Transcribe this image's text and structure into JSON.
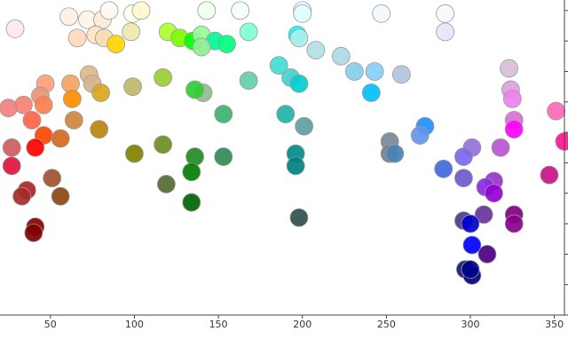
{
  "chart_data": {
    "type": "scatter",
    "x": [
      29,
      61,
      72,
      81,
      85,
      99,
      104,
      66,
      77,
      82,
      98,
      89,
      120,
      127,
      135,
      140,
      148,
      155,
      140,
      143,
      163,
      168,
      200,
      200,
      197,
      198,
      208,
      223,
      247,
      231,
      243,
      259,
      241,
      285,
      285,
      323,
      324,
      325,
      326,
      326,
      351,
      356,
      347,
      186,
      193,
      198,
      168,
      141,
      136,
      117,
      99,
      73,
      75,
      80,
      62,
      47,
      44,
      34,
      25,
      63,
      46,
      39,
      64,
      79,
      46,
      56,
      41,
      27,
      27,
      153,
      190,
      201,
      273,
      270,
      252,
      252,
      255,
      301,
      296,
      318,
      284,
      296,
      314,
      309,
      314,
      100,
      117,
      136,
      153,
      196,
      196,
      134,
      119,
      134,
      51,
      36,
      33,
      56,
      198,
      296,
      308,
      326,
      326,
      300,
      41,
      40,
      301,
      297,
      310,
      301,
      300
    ],
    "y": [
      94,
      98,
      97,
      97,
      100,
      99,
      100,
      91,
      92,
      91,
      93,
      89,
      93,
      91,
      90,
      92,
      90,
      89,
      88,
      100,
      100,
      93,
      100,
      99,
      92,
      91,
      87,
      85,
      99,
      80,
      80,
      79,
      73,
      99,
      93,
      81,
      74,
      71,
      64,
      61,
      67,
      57,
      46,
      82,
      78,
      76,
      77,
      73,
      74,
      78,
      75,
      79,
      76,
      73,
      76,
      76,
      72,
      69,
      68,
      71,
      69,
      64,
      64,
      61,
      59,
      58,
      55,
      55,
      49,
      66,
      66,
      62,
      62,
      59,
      57,
      53,
      53,
      55,
      52,
      55,
      48,
      45,
      44,
      42,
      40,
      53,
      56,
      52,
      52,
      53,
      49,
      47,
      43,
      37,
      45,
      41,
      39,
      39,
      32,
      31,
      33,
      33,
      30,
      30,
      29,
      27,
      23,
      15,
      20,
      13,
      15
    ],
    "colors": [
      "#fde8e8",
      "#fff0e8",
      "#fdf5e6",
      "#faebd7",
      "#fffaf0",
      "#fffff0",
      "#fffacd",
      "#ffdab9",
      "#ffe4c4",
      "#f5deb3",
      "#eee8aa",
      "#ffd700",
      "#adff2f",
      "#7cfc00",
      "#00ff00",
      "#98fb98",
      "#00fa9a",
      "#00ff7f",
      "#90ee90",
      "#f0fff0",
      "#f5fffa",
      "#7fffd4",
      "#f0ffff",
      "#e0ffff",
      "#00ffff",
      "#afeeee",
      "#b0e0e6",
      "#add8e6",
      "#f0f8ff",
      "#87ceeb",
      "#87cefa",
      "#b0c4de",
      "#00bfff",
      "#f8f8ff",
      "#e6e6fa",
      "#d8bfd8",
      "#dda0dd",
      "#ee82ee",
      "#da70d6",
      "#ff00ff",
      "#ff69b4",
      "#ff1493",
      "#c71585",
      "#40e0d0",
      "#48d1cc",
      "#00ced1",
      "#66cdaa",
      "#8fbc8f",
      "#32cd32",
      "#9acd32",
      "#bdb76b",
      "#deb887",
      "#d2b48c",
      "#daa520",
      "#f4a460",
      "#ffa07a",
      "#e9967a",
      "#fa8072",
      "#f08080",
      "#ff8c00",
      "#ff7f50",
      "#ff6347",
      "#cd853f",
      "#b8860b",
      "#ff4500",
      "#d2691e",
      "#ff0000",
      "#cd5c5c",
      "#dc143c",
      "#3cb371",
      "#20b2aa",
      "#5f9ea0",
      "#1e90ff",
      "#6495ed",
      "#778899",
      "#708090",
      "#4682b4",
      "#9370db",
      "#7b68ee",
      "#ba55d3",
      "#4169e1",
      "#6a5acd",
      "#9932cc",
      "#8a2be2",
      "#9400d3",
      "#808000",
      "#6b8e23",
      "#228b22",
      "#2e8b57",
      "#008b8b",
      "#008080",
      "#008000",
      "#556b2f",
      "#006400",
      "#a0522d",
      "#b22222",
      "#a52a2a",
      "#8b4513",
      "#2f4f4f",
      "#483d8b",
      "#663399",
      "#800080",
      "#8b008b",
      "#0000cd",
      "#8b0000",
      "#800000",
      "#0000ff",
      "#191970",
      "#4b0082",
      "#000080",
      "#00008b"
    ],
    "xlim": [
      20,
      356
    ],
    "ylim": [
      0,
      102
    ],
    "xticks": [
      50,
      100,
      150,
      200,
      250,
      300,
      350
    ],
    "yticks": [
      0,
      10,
      20,
      30,
      40,
      50,
      60,
      70,
      80,
      90,
      100
    ]
  }
}
